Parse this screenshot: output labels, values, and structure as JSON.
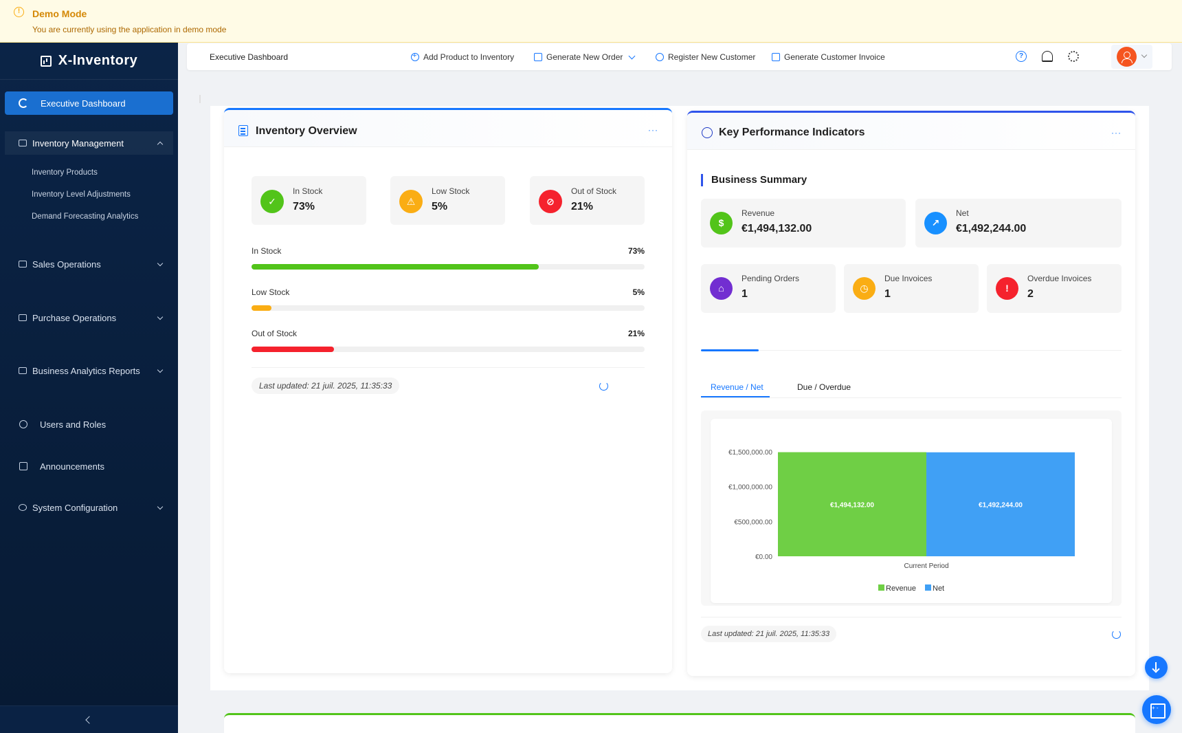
{
  "banner": {
    "title": "Demo Mode",
    "text": "You are currently using the application in demo mode"
  },
  "app": {
    "name": "X-Inventory"
  },
  "sidebar": {
    "active": "Executive Dashboard",
    "inventory_group": "Inventory Management",
    "inventory_items": [
      "Inventory Products",
      "Inventory Level Adjustments",
      "Demand Forecasting Analytics"
    ],
    "sales": "Sales Operations",
    "purchase": "Purchase Operations",
    "reports": "Business Analytics Reports",
    "users": "Users and Roles",
    "announcements": "Announcements",
    "system": "System Configuration"
  },
  "header": {
    "breadcrumb": "Executive Dashboard",
    "add_product": "Add Product to Inventory",
    "new_order": "Generate New Order",
    "register_customer": "Register New Customer",
    "invoice": "Generate Customer Invoice"
  },
  "inventory": {
    "title": "Inventory Overview",
    "more": "···",
    "stats": [
      {
        "label": "In Stock",
        "value": "73%"
      },
      {
        "label": "Low Stock",
        "value": "5%"
      },
      {
        "label": "Out of Stock",
        "value": "21%"
      }
    ],
    "bars": [
      {
        "label": "In Stock",
        "pct": "73%",
        "level": 0.73,
        "color": "#52c41a"
      },
      {
        "label": "Low Stock",
        "pct": "5%",
        "level": 0.05,
        "color": "#faad14"
      },
      {
        "label": "Out of Stock",
        "pct": "21%",
        "level": 0.21,
        "color": "#f5222d"
      }
    ],
    "updated": "Last updated: 21 juil. 2025, 11:35:33"
  },
  "kpi": {
    "title": "Key Performance Indicators",
    "more": "···",
    "section": "Business Summary",
    "revenue": {
      "label": "Revenue",
      "value": "€1,494,132.00"
    },
    "net": {
      "label": "Net",
      "value": "€1,492,244.00"
    },
    "pending": {
      "label": "Pending Orders",
      "value": "1"
    },
    "due": {
      "label": "Due Invoices",
      "value": "1"
    },
    "overdue": {
      "label": "Overdue Invoices",
      "value": "2"
    },
    "tabs": [
      "Revenue / Net",
      "Due / Overdue"
    ],
    "updated": "Last updated: 21 juil. 2025, 11:35:33"
  },
  "chart_data": {
    "type": "bar",
    "categories": [
      "Current Period"
    ],
    "series": [
      {
        "name": "Revenue",
        "values": [
          1494132.0
        ],
        "label": "€1,494,132.00",
        "color": "#6fcf45"
      },
      {
        "name": "Net",
        "values": [
          1492244.0
        ],
        "label": "€1,492,244.00",
        "color": "#40a0f5"
      }
    ],
    "yticks": [
      "€0.00",
      "€500,000.00",
      "€1,000,000.00",
      "€1,500,000.00"
    ],
    "ylim": [
      0,
      1500000
    ],
    "legend": "bottom",
    "grid": false
  },
  "colors": {
    "accent": "#1677ff",
    "sidebar": "#0b2447"
  }
}
